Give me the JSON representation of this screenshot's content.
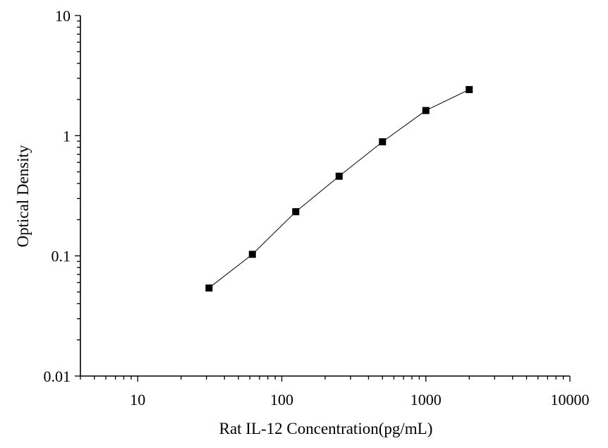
{
  "chart_data": {
    "type": "line",
    "title": "",
    "xlabel": "Rat IL-12 Concentration(pg/mL)",
    "ylabel": "Optical Density",
    "x_scale": "log",
    "y_scale": "log",
    "xlim": [
      4,
      10000
    ],
    "ylim": [
      0.01,
      10
    ],
    "x_ticks": [
      10,
      100,
      1000,
      10000
    ],
    "x_tick_labels": [
      "10",
      "100",
      "1000",
      "10000"
    ],
    "y_ticks": [
      0.01,
      0.1,
      1,
      10
    ],
    "y_tick_labels": [
      "0.01",
      "0.1",
      "1",
      "10"
    ],
    "grid": false,
    "legend": "none",
    "series": [
      {
        "marker": "square",
        "color": "#000000",
        "x": [
          31.25,
          62.5,
          125,
          250,
          500,
          1000,
          2000
        ],
        "y": [
          0.054,
          0.103,
          0.233,
          0.46,
          0.89,
          1.62,
          2.42
        ]
      }
    ]
  }
}
